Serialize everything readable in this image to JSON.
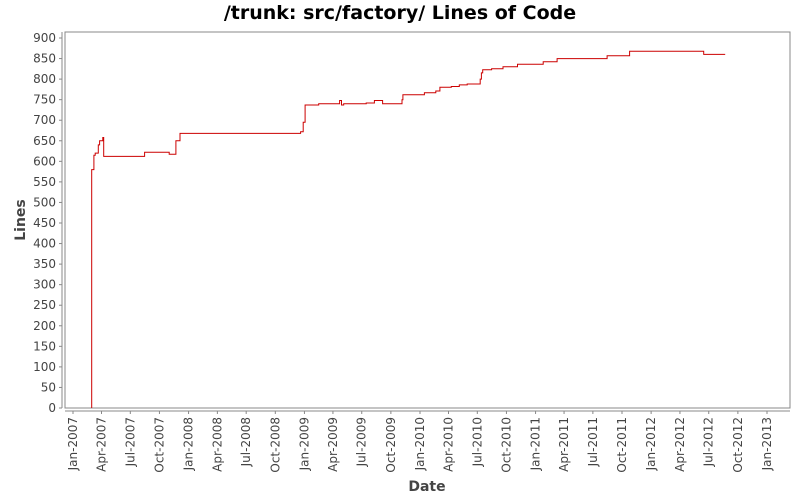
{
  "chart_data": {
    "type": "line",
    "title": "/trunk: src/factory/ Lines of Code",
    "xlabel": "Date",
    "ylabel": "Lines",
    "ylim": [
      0,
      900
    ],
    "yticks": [
      0,
      50,
      100,
      150,
      200,
      250,
      300,
      350,
      400,
      450,
      500,
      550,
      600,
      650,
      700,
      750,
      800,
      850,
      900
    ],
    "xticks": [
      "Jan-2007",
      "Apr-2007",
      "Jul-2007",
      "Oct-2007",
      "Jan-2008",
      "Apr-2008",
      "Jul-2008",
      "Oct-2008",
      "Jan-2009",
      "Apr-2009",
      "Jul-2009",
      "Oct-2009",
      "Jan-2010",
      "Apr-2010",
      "Jul-2010",
      "Oct-2010",
      "Jan-2011",
      "Apr-2011",
      "Jul-2011",
      "Oct-2011",
      "Jan-2012",
      "Apr-2012",
      "Jul-2012",
      "Oct-2012",
      "Jan-2013"
    ],
    "grid": false,
    "legend": null,
    "line_color": "#cc0000",
    "step": true,
    "series": [
      {
        "name": "Lines of Code",
        "points": [
          [
            "2007-03-01",
            0
          ],
          [
            "2007-03-01",
            580
          ],
          [
            "2007-03-08",
            615
          ],
          [
            "2007-03-12",
            620
          ],
          [
            "2007-03-22",
            640
          ],
          [
            "2007-03-26",
            650
          ],
          [
            "2007-04-05",
            658
          ],
          [
            "2007-04-08",
            612
          ],
          [
            "2007-08-15",
            622
          ],
          [
            "2007-11-01",
            617
          ],
          [
            "2007-11-22",
            650
          ],
          [
            "2007-12-05",
            668
          ],
          [
            "2008-12-20",
            672
          ],
          [
            "2008-12-28",
            695
          ],
          [
            "2009-01-03",
            737
          ],
          [
            "2009-02-15",
            740
          ],
          [
            "2009-04-22",
            748
          ],
          [
            "2009-04-28",
            737
          ],
          [
            "2009-05-05",
            740
          ],
          [
            "2009-07-15",
            742
          ],
          [
            "2009-08-10",
            748
          ],
          [
            "2009-09-05",
            740
          ],
          [
            "2009-11-05",
            750
          ],
          [
            "2009-11-08",
            762
          ],
          [
            "2010-01-15",
            767
          ],
          [
            "2010-02-20",
            771
          ],
          [
            "2010-03-05",
            780
          ],
          [
            "2010-04-10",
            782
          ],
          [
            "2010-05-05",
            786
          ],
          [
            "2010-05-30",
            788
          ],
          [
            "2010-07-10",
            800
          ],
          [
            "2010-07-14",
            815
          ],
          [
            "2010-07-18",
            823
          ],
          [
            "2010-08-15",
            825
          ],
          [
            "2010-09-20",
            830
          ],
          [
            "2010-11-05",
            836
          ],
          [
            "2011-01-25",
            842
          ],
          [
            "2011-03-10",
            850
          ],
          [
            "2011-08-15",
            857
          ],
          [
            "2011-10-25",
            868
          ],
          [
            "2012-06-15",
            860
          ],
          [
            "2012-07-15",
            860
          ]
        ]
      }
    ]
  }
}
